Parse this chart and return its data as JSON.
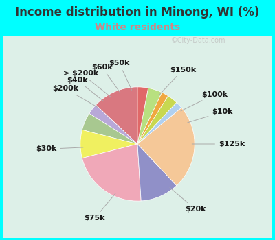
{
  "title": "Income distribution in Minong, WI (%)",
  "subtitle": "White residents",
  "title_color": "#333333",
  "subtitle_color": "#cc8888",
  "bg_color": "#00ffff",
  "labels": [
    "$150k",
    "$100k",
    "$10k",
    "$125k",
    "$20k",
    "$75k",
    "$30k",
    "$200k",
    "$40k",
    "> $200k",
    "$60k",
    "$50k"
  ],
  "values": [
    13,
    3,
    5,
    8,
    22,
    11,
    24,
    2,
    3,
    2,
    4,
    3
  ],
  "colors": [
    "#d97880",
    "#b8a8d8",
    "#a8c890",
    "#f0f060",
    "#f0a8b8",
    "#9090c8",
    "#f5c898",
    "#b0d0f0",
    "#c8d850",
    "#f0a840",
    "#b8e080",
    "#e06868"
  ],
  "label_fs": 8,
  "title_fs": 12,
  "sub_fs": 10,
  "startangle": 90
}
